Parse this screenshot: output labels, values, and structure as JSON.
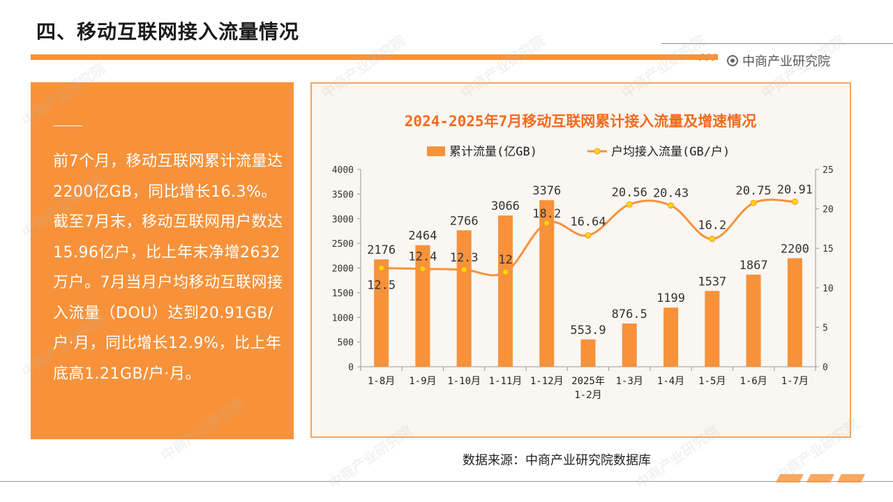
{
  "header": {
    "title": "四、移动互联网接入流量情况",
    "brand": "中商产业研究院"
  },
  "summary": {
    "text": "前7个月，移动互联网累计流量达2200亿GB，同比增长16.3%。截至7月末，移动互联网用户数达15.96亿户，比上年末净增2632万户。7月当月户均移动互联网接入流量（DOU）达到20.91GB/户·月，同比增长12.9%，比上年底高1.21GB/户·月。"
  },
  "footer": {
    "source": "数据来源：中商产业研究院数据库"
  },
  "watermark": {
    "text": "中商产业研究院",
    "url": "www.askci.com/reports"
  },
  "colors": {
    "accent": "#f7923a",
    "bar": "#f7923a",
    "line": "#f7923a",
    "marker": "#ffd700",
    "chart_title": "#f26b1d",
    "panel_text": "#ffffff"
  },
  "chart_data": {
    "type": "bar",
    "title": "2024-2025年7月移动互联网累计接入流量及增速情况",
    "categories": [
      "1-8月",
      "1-9月",
      "1-10月",
      "1-11月",
      "1-12月",
      "2025年\n1-2月",
      "1-3月",
      "1-4月",
      "1-5月",
      "1-6月",
      "1-7月"
    ],
    "series": [
      {
        "name": "累计流量(亿GB)",
        "type": "bar",
        "axis": "left",
        "values": [
          2176,
          2464,
          2766,
          3066,
          3376,
          553.9,
          876.5,
          1199,
          1537,
          1867,
          2200
        ],
        "labels": [
          "2176",
          "2464",
          "2766",
          "3066",
          "3376",
          "553.9",
          "876.5",
          "1199",
          "1537",
          "1867",
          "2200"
        ]
      },
      {
        "name": "户均接入流量(GB/户)",
        "type": "line",
        "axis": "right",
        "values": [
          12.5,
          12.4,
          12.3,
          12,
          18.2,
          16.64,
          20.56,
          20.43,
          16.2,
          20.75,
          20.91
        ],
        "labels": [
          "12.5",
          "12.4",
          "12.3",
          "12",
          "18.2",
          "16.64",
          "20.56",
          "20.43",
          "16.2",
          "20.75",
          "20.91"
        ]
      }
    ],
    "ylim_left": [
      0,
      4000
    ],
    "yticks_left": [
      "0",
      "500",
      "1000",
      "1500",
      "2000",
      "2500",
      "3000",
      "3500",
      "4000"
    ],
    "ylim_right": [
      0,
      25
    ],
    "yticks_right": [
      "0",
      "5",
      "10",
      "15",
      "20",
      "25"
    ],
    "legend": "top-center",
    "grid": false
  }
}
